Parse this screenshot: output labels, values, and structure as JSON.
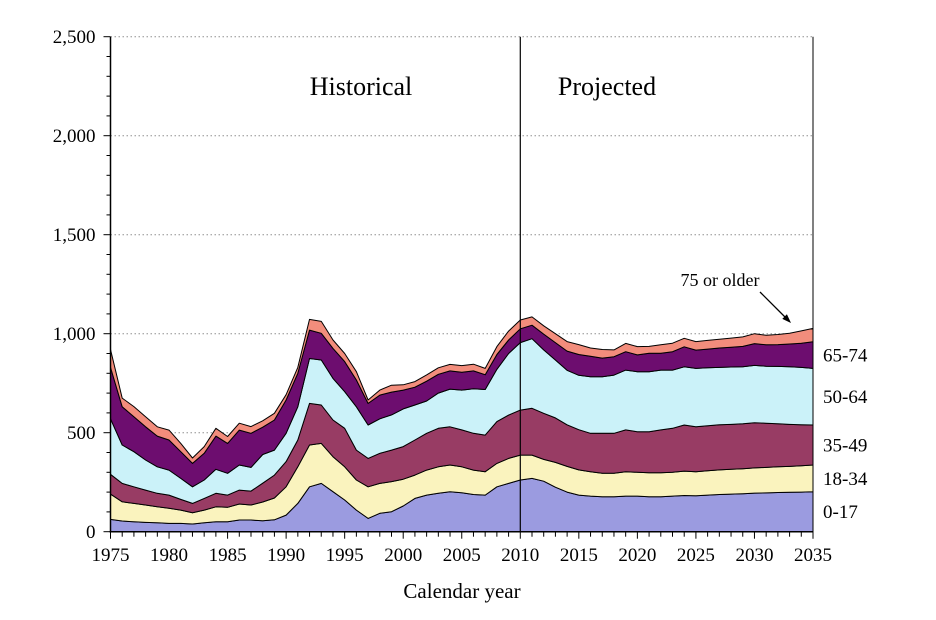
{
  "chart_data": {
    "type": "area",
    "stacked": true,
    "xlabel": "Calendar year",
    "ylabel": "",
    "x_start": 1975,
    "x_end": 2035,
    "x_step": 1,
    "ylim": [
      0,
      2500
    ],
    "ytick_interval": 500,
    "ytick_minor_interval": 100,
    "grid": "horizontal-dotted",
    "legend_position": "inline-right",
    "ytick_labels": [
      "0",
      "500",
      "1,000",
      "1,500",
      "2,000",
      "2,500"
    ],
    "xtick_labels": [
      "1975",
      "1980",
      "1985",
      "1990",
      "1995",
      "2000",
      "2005",
      "2010",
      "2015",
      "2020",
      "2025",
      "2030",
      "2035"
    ],
    "annotations": {
      "historical": "Historical",
      "projected": "Projected",
      "divider_year": 2010,
      "callout_label": "75 or older"
    },
    "series": [
      {
        "name": "0-17",
        "color": "#9B9BE0",
        "values": [
          62,
          54,
          50,
          47,
          45,
          42,
          42,
          39,
          45,
          50,
          50,
          59,
          59,
          55,
          60,
          84,
          143,
          227,
          244,
          202,
          160,
          109,
          67,
          93,
          101,
          130,
          168,
          185,
          194,
          202,
          197,
          188,
          185,
          227,
          244,
          261,
          269,
          255,
          225,
          200,
          185,
          180,
          177,
          177,
          180,
          180,
          177,
          177,
          180,
          183,
          182,
          185,
          188,
          190,
          192,
          195,
          196,
          198,
          199,
          200,
          202
        ]
      },
      {
        "name": "18-34",
        "color": "#FAF3BE",
        "values": [
          128,
          97,
          93,
          88,
          81,
          76,
          67,
          57,
          64,
          76,
          73,
          81,
          76,
          95,
          110,
          143,
          185,
          211,
          202,
          177,
          168,
          152,
          160,
          151,
          152,
          135,
          118,
          126,
          134,
          135,
          131,
          123,
          118,
          118,
          126,
          126,
          118,
          110,
          125,
          130,
          127,
          123,
          118,
          118,
          123,
          120,
          121,
          121,
          120,
          123,
          121,
          123,
          124,
          125,
          126,
          127,
          129,
          130,
          131,
          133,
          135
        ]
      },
      {
        "name": "35-49",
        "color": "#983C64",
        "values": [
          100,
          93,
          84,
          75,
          68,
          67,
          54,
          47,
          59,
          68,
          62,
          70,
          70,
          95,
          116,
          127,
          135,
          210,
          194,
          185,
          194,
          151,
          143,
          152,
          159,
          165,
          177,
          186,
          194,
          193,
          186,
          186,
          185,
          211,
          219,
          227,
          236,
          233,
          225,
          210,
          203,
          194,
          202,
          202,
          211,
          205,
          207,
          216,
          222,
          233,
          227,
          227,
          228,
          227,
          227,
          228,
          223,
          217,
          212,
          207,
          202
        ]
      },
      {
        "name": "50-64",
        "color": "#CBF2F9",
        "values": [
          280,
          194,
          177,
          152,
          134,
          126,
          106,
          84,
          93,
          121,
          110,
          127,
          120,
          145,
          126,
          143,
          168,
          227,
          227,
          210,
          185,
          219,
          169,
          174,
          178,
          190,
          177,
          163,
          178,
          190,
          201,
          225,
          230,
          264,
          311,
          341,
          352,
          320,
          292,
          275,
          275,
          286,
          286,
          294,
          302,
          303,
          303,
          302,
          294,
          294,
          295,
          293,
          290,
          290,
          288,
          290,
          288,
          290,
          291,
          290,
          286
        ]
      },
      {
        "name": "65-74",
        "color": "#6D0D6F",
        "values": [
          260,
          193,
          177,
          168,
          155,
          152,
          135,
          118,
          135,
          168,
          151,
          176,
          172,
          138,
          152,
          168,
          169,
          143,
          135,
          152,
          152,
          135,
          109,
          120,
          115,
          95,
          90,
          100,
          95,
          92,
          90,
          90,
          75,
          75,
          68,
          70,
          68,
          80,
          88,
          97,
          105,
          103,
          94,
          93,
          93,
          85,
          93,
          85,
          93,
          101,
          92,
          94,
          98,
          100,
          103,
          110,
          108,
          110,
          115,
          122,
          134
        ]
      },
      {
        "name": "75 or older",
        "color": "#F28D7C",
        "callout": true,
        "values": [
          90,
          44,
          51,
          51,
          47,
          50,
          42,
          27,
          34,
          39,
          35,
          35,
          34,
          32,
          34,
          27,
          30,
          54,
          60,
          42,
          41,
          42,
          17,
          25,
          35,
          27,
          28,
          32,
          33,
          33,
          34,
          34,
          32,
          40,
          45,
          44,
          42,
          42,
          45,
          48,
          50,
          42,
          43,
          34,
          42,
          42,
          35,
          43,
          43,
          43,
          43,
          44,
          44,
          46,
          48,
          50,
          48,
          51,
          54,
          62,
          68
        ]
      }
    ]
  }
}
